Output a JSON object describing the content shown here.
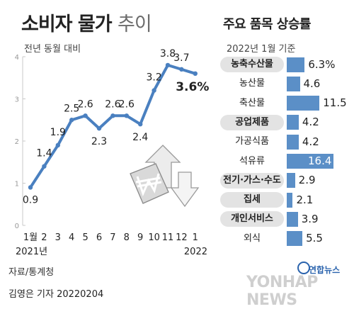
{
  "left": {
    "title_main": "소비자 물가",
    "title_light": "추이",
    "subtitle": "전년 동월 대비"
  },
  "right": {
    "title": "주요 품목 상승률",
    "subtitle": "2022년 1월 기준"
  },
  "source": "자료/통계청",
  "credit": "김영은 기자  20220204",
  "logo": {
    "ko": "연합뉴스",
    "en": "YONHAP NEWS"
  },
  "colors": {
    "line": "#4a80c0",
    "bar": "#5b8fc7",
    "highlight_bg": "#e3e3e3"
  },
  "icon": "won-up-down-arrows-icon",
  "chart_data": [
    {
      "type": "line",
      "title": "소비자 물가 추이",
      "subtitle": "전년 동월 대비",
      "x": [
        "1월",
        "2",
        "3",
        "4",
        "5",
        "6",
        "7",
        "8",
        "9",
        "10",
        "11",
        "12",
        "1"
      ],
      "year_labels": [
        "2021년",
        "2022"
      ],
      "values": [
        0.9,
        1.4,
        1.9,
        2.5,
        2.6,
        2.3,
        2.6,
        2.6,
        2.4,
        3.2,
        3.8,
        3.7,
        3.6
      ],
      "value_labels": [
        "0.9",
        "1.4",
        "1.9",
        "2.5",
        "2.6",
        "2.3",
        "2.6",
        "2.6",
        "2.4",
        "3.2",
        "3.8",
        "3.7",
        "3.6%"
      ],
      "y_ticks": [
        "0",
        "1",
        "2",
        "3",
        "4"
      ],
      "ylim": [
        0,
        4
      ],
      "grid": false
    },
    {
      "type": "bar",
      "orientation": "horizontal",
      "title": "주요 품목 상승률",
      "subtitle": "2022년 1월 기준",
      "categories": [
        "농축수산물",
        "농산물",
        "축산물",
        "공업제품",
        "가공식품",
        "석유류",
        "전기·가스·수도",
        "집세",
        "개인서비스",
        "외식"
      ],
      "values": [
        6.3,
        4.6,
        11.5,
        4.2,
        4.2,
        16.4,
        2.9,
        2.1,
        3.9,
        5.5
      ],
      "value_labels": [
        "6.3%",
        "4.6",
        "11.5",
        "4.2",
        "4.2",
        "16.4",
        "2.9",
        "2.1",
        "3.9",
        "5.5"
      ],
      "highlighted": [
        "농축수산물",
        "공업제품",
        "전기·가스·수도",
        "집세",
        "개인서비스"
      ]
    }
  ]
}
